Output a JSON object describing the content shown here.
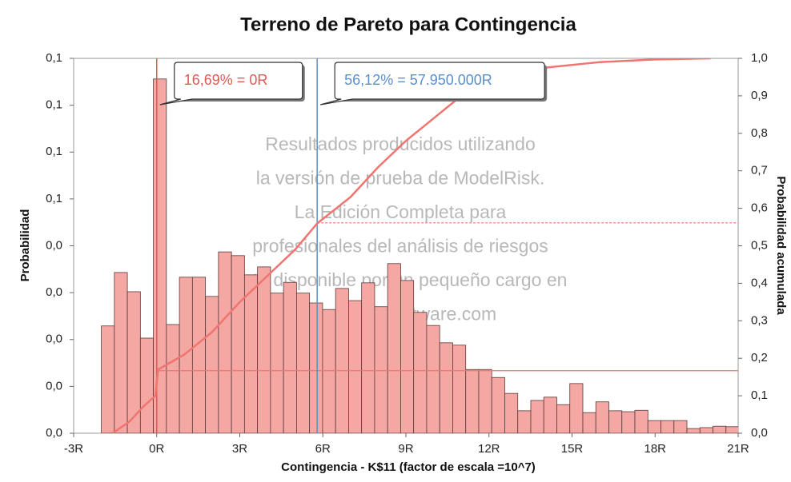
{
  "chart_data": {
    "type": "histogram",
    "title": "Terreno de Pareto para Contingencia",
    "x_label": "Contingencia - K$11 (factor de escala =10^7)",
    "y_label": "Probabilidad",
    "y2_label": "Probabilidad acumulada",
    "watermark": [
      "Resultados producidos utilizando",
      "la versión de prueba de ModelRisk.",
      "La Edición Completa para",
      "profesionales del análisis de riesgos",
      "está disponible por un pequeño cargo en",
      "www.vosesoftware.com"
    ],
    "color": "#f4a7a3",
    "bins": [
      -2,
      -1.53,
      -1.06,
      -0.59,
      -0.12,
      0.35,
      0.82,
      1.29,
      1.76,
      2.23,
      2.7,
      3.17,
      3.64,
      4.11,
      4.58,
      5.05,
      5.52,
      5.99,
      6.46,
      6.93,
      7.4,
      7.87,
      8.34,
      8.81,
      9.28,
      9.75,
      10.22,
      10.69,
      11.16,
      11.63,
      12.1,
      12.57,
      13.04,
      13.51,
      13.98,
      14.45,
      14.92,
      15.39,
      15.86,
      16.33,
      16.8,
      17.27,
      17.74,
      18.21,
      18.68,
      19.15,
      19.62,
      20.09,
      20.56,
      21.03
    ],
    "values": [
      0.0229,
      0.0343,
      0.0302,
      0.0203,
      0.0756,
      0.0232,
      0.0333,
      0.0333,
      0.0292,
      0.0387,
      0.0379,
      0.0338,
      0.0355,
      0.0299,
      0.0322,
      0.0299,
      0.0278,
      0.0264,
      0.0309,
      0.0283,
      0.0321,
      0.027,
      0.0362,
      0.0326,
      0.0258,
      0.023,
      0.0193,
      0.0188,
      0.0136,
      0.0136,
      0.0119,
      0.0085,
      0.0048,
      0.007,
      0.0077,
      0.0061,
      0.0106,
      0.0044,
      0.0067,
      0.0048,
      0.0046,
      0.0049,
      0.0027,
      0.0027,
      0.0027,
      0.001,
      0.0012,
      0.0015,
      0.0014
    ],
    "cumulative": {
      "axis": "y2",
      "color": "#f07470",
      "x": [
        -1.6,
        -1,
        -0.5,
        -0.05,
        0.05,
        1,
        2,
        3,
        4,
        5,
        5.8,
        7,
        8,
        9,
        10,
        11,
        12,
        13,
        14,
        16,
        18,
        20
      ],
      "values": [
        0,
        0.03,
        0.07,
        0.1,
        0.17,
        0.21,
        0.27,
        0.35,
        0.42,
        0.49,
        0.56,
        0.63,
        0.71,
        0.78,
        0.84,
        0.9,
        0.94,
        0.96,
        0.975,
        0.99,
        0.997,
        1.0
      ]
    },
    "markers": [
      {
        "x": 0,
        "cumulative": 0.1669,
        "label": "16,69% = 0R",
        "color": "#e05a55"
      },
      {
        "x": 5.795,
        "cumulative": 0.5612,
        "label": "56,12% = 57.950.000R",
        "color": "#5b8fc9"
      }
    ],
    "xlim": [
      -3,
      21
    ],
    "xticks": [
      {
        "value": -3,
        "label": "-3R"
      },
      {
        "value": 0,
        "label": "0R"
      },
      {
        "value": 3,
        "label": "3R"
      },
      {
        "value": 6,
        "label": "6R"
      },
      {
        "value": 9,
        "label": "9R"
      },
      {
        "value": 12,
        "label": "12R"
      },
      {
        "value": 15,
        "label": "15R"
      },
      {
        "value": 18,
        "label": "18R"
      },
      {
        "value": 21,
        "label": "21R"
      }
    ],
    "ylim": [
      0,
      0.08
    ],
    "yticks": [
      {
        "value": 0,
        "label": "0,0"
      },
      {
        "value": 0.01,
        "label": "0,0"
      },
      {
        "value": 0.02,
        "label": "0,0"
      },
      {
        "value": 0.03,
        "label": "0,0"
      },
      {
        "value": 0.04,
        "label": "0,0"
      },
      {
        "value": 0.05,
        "label": "0,1"
      },
      {
        "value": 0.06,
        "label": "0,1"
      },
      {
        "value": 0.07,
        "label": "0,1"
      },
      {
        "value": 0.08,
        "label": "0,1"
      }
    ],
    "y2lim": [
      0,
      1
    ],
    "y2ticks": [
      {
        "value": 0,
        "label": "0,0"
      },
      {
        "value": 0.1,
        "label": "0,1"
      },
      {
        "value": 0.2,
        "label": "0,2"
      },
      {
        "value": 0.3,
        "label": "0,3"
      },
      {
        "value": 0.4,
        "label": "0,4"
      },
      {
        "value": 0.5,
        "label": "0,5"
      },
      {
        "value": 0.6,
        "label": "0,6"
      },
      {
        "value": 0.7,
        "label": "0,7"
      },
      {
        "value": 0.8,
        "label": "0,8"
      },
      {
        "value": 0.9,
        "label": "0,9"
      },
      {
        "value": 1.0,
        "label": "1,0"
      }
    ]
  }
}
